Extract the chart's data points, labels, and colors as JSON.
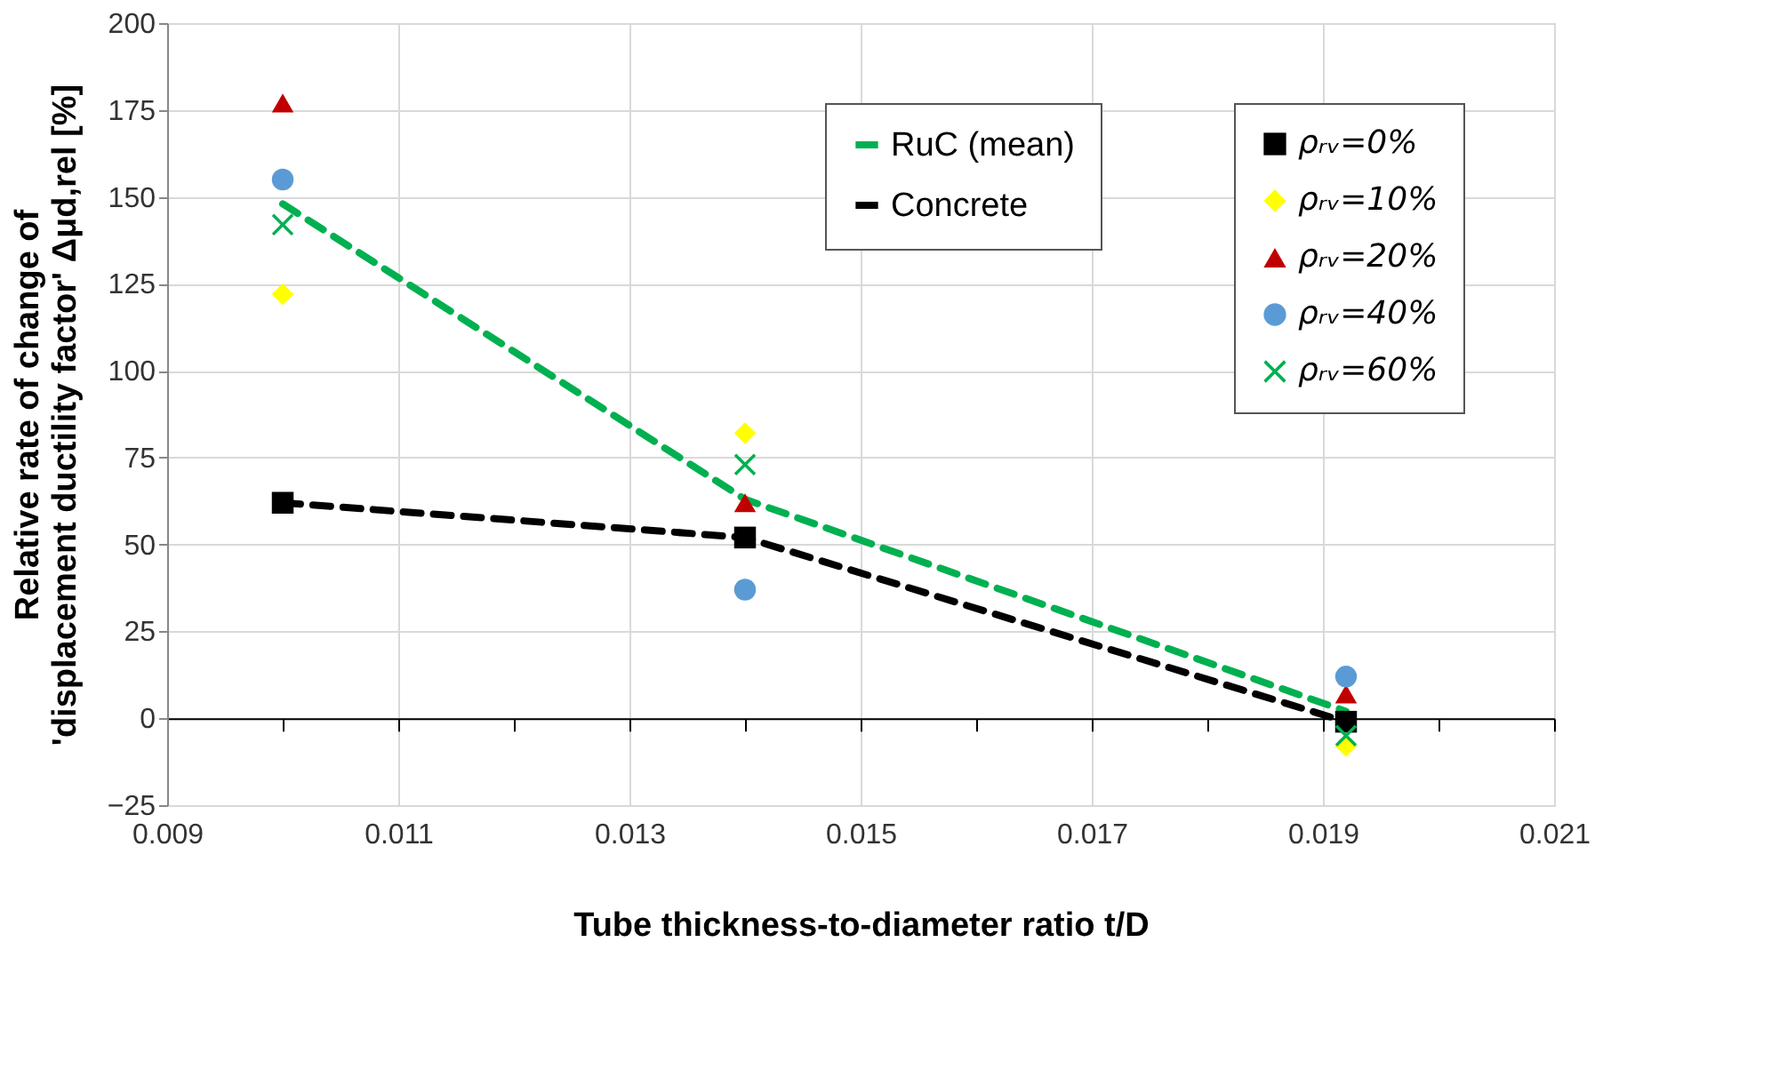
{
  "chart_data": {
    "type": "scatter",
    "xlabel": "Tube thickness-to-diameter ratio t/D",
    "ylabel": "Relative rate of change of\n'displacement ductility factor' Δμd,rel [%]",
    "x": [
      0.01,
      0.014,
      0.0192
    ],
    "xlim": [
      0.009,
      0.021
    ],
    "xticks": [
      0.009,
      {
        "value": 0.01,
        "label": null
      },
      0.011,
      {
        "value": 0.012,
        "label": null
      },
      0.013,
      {
        "value": 0.014,
        "label": null
      },
      0.015,
      {
        "value": 0.016,
        "label": null
      },
      0.017,
      {
        "value": 0.018,
        "label": null
      },
      0.019,
      {
        "value": 0.02,
        "label": null
      },
      0.021
    ],
    "ylim": [
      -25,
      200
    ],
    "yticks": [
      -25,
      0,
      25,
      50,
      75,
      100,
      125,
      150,
      175,
      200
    ],
    "grid": true,
    "legend": "top right",
    "series": [
      {
        "name": "RuC (mean)",
        "type": "line",
        "color": "#00b050",
        "line_style": "dashed",
        "marker": "none",
        "values": [
          148,
          63,
          2
        ]
      },
      {
        "name": "Concrete",
        "type": "line",
        "color": "#000000",
        "line_style": "dashed",
        "marker": "none",
        "values": [
          62,
          52,
          -1
        ]
      },
      {
        "name": "ρᵣᵥ=0%",
        "color": "#000000",
        "marker": "square",
        "values": [
          62,
          52,
          -1
        ]
      },
      {
        "name": "ρᵣᵥ=10%",
        "color": "#ffff00",
        "marker": "diamond",
        "values": [
          122,
          82,
          -8
        ]
      },
      {
        "name": "ρᵣᵥ=20%",
        "color": "#c00000",
        "marker": "triangle",
        "values": [
          177,
          62,
          7
        ]
      },
      {
        "name": "ρᵣᵥ=40%",
        "color": "#5b9bd5",
        "marker": "circle",
        "values": [
          155,
          37,
          12
        ]
      },
      {
        "name": "ρᵣᵥ=60%",
        "color": "#00b050",
        "marker": "cross",
        "values": [
          142,
          73,
          -5
        ]
      }
    ]
  }
}
